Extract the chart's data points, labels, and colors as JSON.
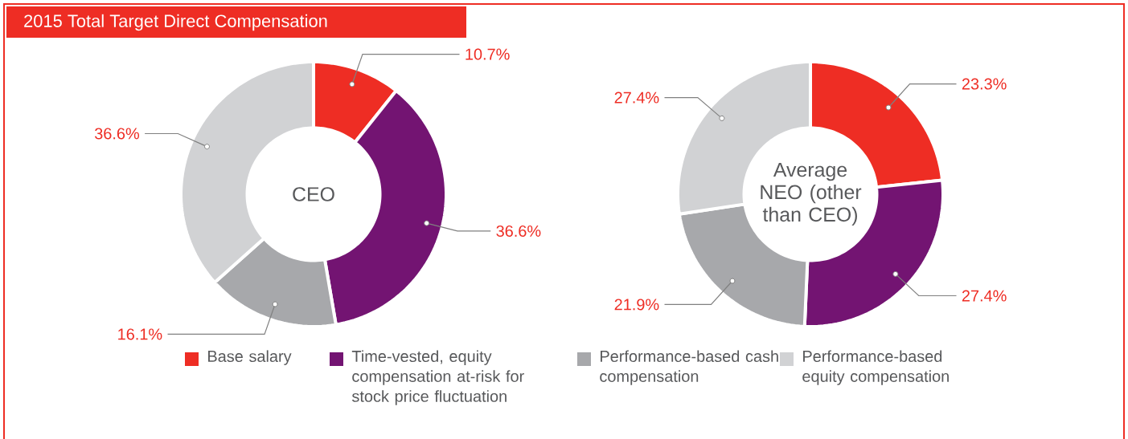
{
  "chart_data": [
    {
      "type": "donut",
      "title": "2015 Total Target Direct Compensation",
      "subtitle": "CEO",
      "categories": [
        "Base salary",
        "Time-vested, equity compensation at-risk for stock price fluctuation",
        "Performance-based cash compensation",
        "Performance-based equity compensation"
      ],
      "values": [
        10.7,
        36.6,
        16.1,
        36.6
      ],
      "value_labels": [
        "10.7%",
        "36.6%",
        "16.1%",
        "36.6%"
      ],
      "colors": [
        "#ee2d24",
        "#731472",
        "#a7a8ab",
        "#d1d2d4"
      ],
      "legend": "bottom"
    },
    {
      "type": "donut",
      "subtitle": "Average NEO (other than CEO)",
      "categories": [
        null,
        null,
        null,
        null
      ],
      "values": [
        23.3,
        27.4,
        21.9,
        27.4
      ],
      "value_labels": [
        "23.3%",
        "27.4%",
        "21.9%",
        "27.4%"
      ],
      "colors": [
        "#ee2d24",
        "#731472",
        "#a7a8ab",
        "#d1d2d4"
      ]
    }
  ]
}
